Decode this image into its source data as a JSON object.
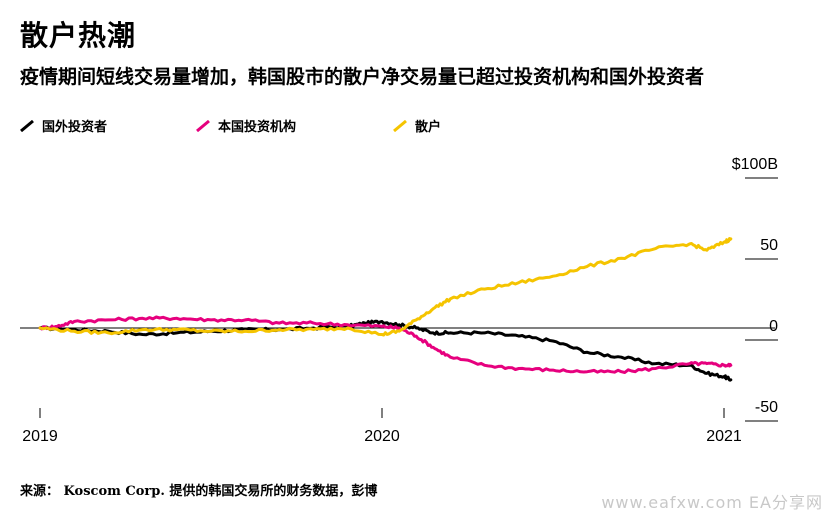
{
  "title": "散户热潮",
  "subtitle": "疫情期间短线交易量增加，韩国股市的散户净交易量已超过投资机构和国外投资者",
  "source": "来源：   Koscom Corp. 提供的韩国交易所的财务数据，彭博",
  "watermark": "www.eafxw.com   EA分享网",
  "colors": {
    "foreign": "#000000",
    "institution": "#e6007e",
    "retail": "#f5c400"
  },
  "chart_data": {
    "type": "line",
    "title": "散户热潮",
    "subtitle": "疫情期间短线交易量增加，韩国股市的散户净交易量已超过投资机构和国外投资者",
    "xlabel": "",
    "ylabel": "",
    "x_ticks": [
      "2019",
      "2020",
      "2021"
    ],
    "y_ticks": [
      "$100B",
      "50",
      "0",
      "-50"
    ],
    "y_unit": "$B",
    "ylim": [
      -50,
      100
    ],
    "xlim": [
      2019.0,
      2021.05
    ],
    "grid": "zero line only",
    "legend": "top",
    "series": [
      {
        "name": "国外投资者",
        "color": "#000000",
        "x": [
          2019.0,
          2019.1,
          2019.2,
          2019.3,
          2019.4,
          2019.5,
          2019.6,
          2019.7,
          2019.8,
          2019.9,
          2019.95,
          2020.0,
          2020.05,
          2020.1,
          2020.15,
          2020.2,
          2020.3,
          2020.4,
          2020.5,
          2020.6,
          2020.7,
          2020.8,
          2020.9,
          2020.95,
          2021.0,
          2021.02
        ],
        "values": [
          0,
          -1,
          -2,
          -4,
          -3,
          -2,
          -1,
          -1,
          0,
          1,
          3,
          4,
          2,
          0,
          -3,
          -3,
          -3,
          -5,
          -8,
          -15,
          -18,
          -22,
          -23,
          -28,
          -30,
          -32
        ]
      },
      {
        "name": "本国投资机构",
        "color": "#e6007e",
        "x": [
          2019.0,
          2019.05,
          2019.1,
          2019.2,
          2019.3,
          2019.4,
          2019.5,
          2019.6,
          2019.7,
          2019.8,
          2019.9,
          2020.0,
          2020.05,
          2020.1,
          2020.15,
          2020.2,
          2020.3,
          2020.4,
          2020.5,
          2020.6,
          2020.7,
          2020.8,
          2020.9,
          2020.95,
          2021.0,
          2021.02
        ],
        "values": [
          0,
          1,
          4,
          5,
          6,
          6,
          5,
          5,
          3,
          3,
          2,
          1,
          0,
          -5,
          -12,
          -18,
          -23,
          -25,
          -26,
          -27,
          -27,
          -25,
          -22,
          -22,
          -23,
          -23
        ]
      },
      {
        "name": "散户",
        "color": "#f5c400",
        "x": [
          2019.0,
          2019.1,
          2019.2,
          2019.3,
          2019.4,
          2019.5,
          2019.6,
          2019.7,
          2019.8,
          2019.9,
          2020.0,
          2020.05,
          2020.1,
          2020.15,
          2020.2,
          2020.3,
          2020.4,
          2020.5,
          2020.6,
          2020.7,
          2020.8,
          2020.9,
          2020.95,
          2021.0,
          2021.02
        ],
        "values": [
          0,
          -2,
          -3,
          -1,
          -1,
          -2,
          -2,
          -1,
          -1,
          0,
          -4,
          -2,
          5,
          12,
          18,
          24,
          28,
          32,
          38,
          43,
          49,
          52,
          48,
          53,
          55
        ]
      }
    ]
  }
}
